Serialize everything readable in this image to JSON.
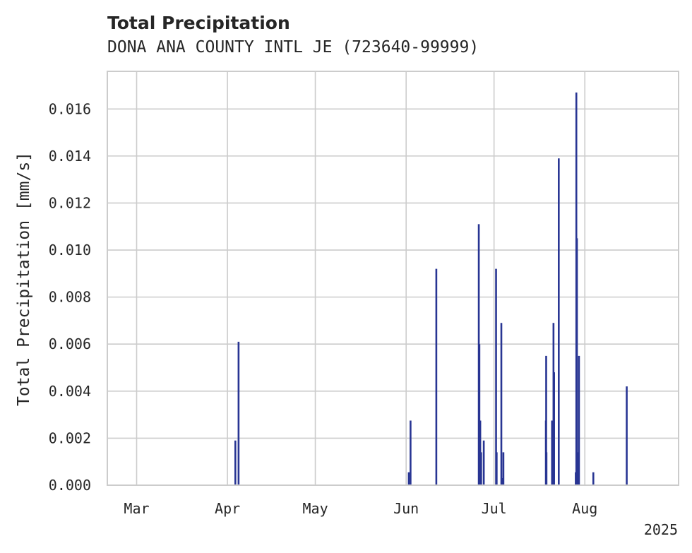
{
  "chart_data": {
    "type": "bar",
    "title": "Total Precipitation",
    "subtitle": "DONA ANA COUNTY INTL JE (723640-99999)",
    "ylabel": "Total Precipitation [mm/s]",
    "xlabel": "",
    "x_year_label": "2025",
    "xlim": [
      -10,
      185
    ],
    "ylim": [
      0,
      0.0176
    ],
    "x_ticks": [
      {
        "day": 0,
        "label": "Mar"
      },
      {
        "day": 31,
        "label": "Apr"
      },
      {
        "day": 61,
        "label": "May"
      },
      {
        "day": 92,
        "label": "Jun"
      },
      {
        "day": 122,
        "label": "Jul"
      },
      {
        "day": 153,
        "label": "Aug"
      }
    ],
    "y_ticks": [
      {
        "value": 0.0,
        "label": "0.000"
      },
      {
        "value": 0.002,
        "label": "0.002"
      },
      {
        "value": 0.004,
        "label": "0.004"
      },
      {
        "value": 0.006,
        "label": "0.006"
      },
      {
        "value": 0.008,
        "label": "0.008"
      },
      {
        "value": 0.01,
        "label": "0.010"
      },
      {
        "value": 0.012,
        "label": "0.012"
      },
      {
        "value": 0.014,
        "label": "0.014"
      },
      {
        "value": 0.016,
        "label": "0.016"
      }
    ],
    "grid": true,
    "bar_color": "#283593",
    "series": [
      {
        "name": "Total Precipitation",
        "x_day": [
          33.7,
          34.8,
          92.9,
          93.5,
          102.3,
          116.8,
          117.0,
          117.3,
          117.6,
          118.5,
          122.7,
          122.9,
          124.5,
          125.2,
          124.8,
          139.7,
          139.8,
          139.9,
          141.8,
          142.3,
          142.5,
          144.1,
          149.9,
          150.1,
          150.3,
          150.5,
          155.9,
          151.0,
          150.7,
          167.3
        ],
        "values": [
          0.0019,
          0.0061,
          0.00055,
          0.00275,
          0.0092,
          0.0111,
          0.006,
          0.00275,
          0.0014,
          0.0019,
          0.0092,
          0.0014,
          0.0069,
          0.0014,
          0.0003,
          0.00275,
          0.0055,
          0.0014,
          0.00275,
          0.0069,
          0.0048,
          0.0139,
          0.00055,
          0.0167,
          0.0105,
          0.0014,
          0.00055,
          0.0055,
          0.0003,
          0.0042
        ]
      }
    ]
  }
}
